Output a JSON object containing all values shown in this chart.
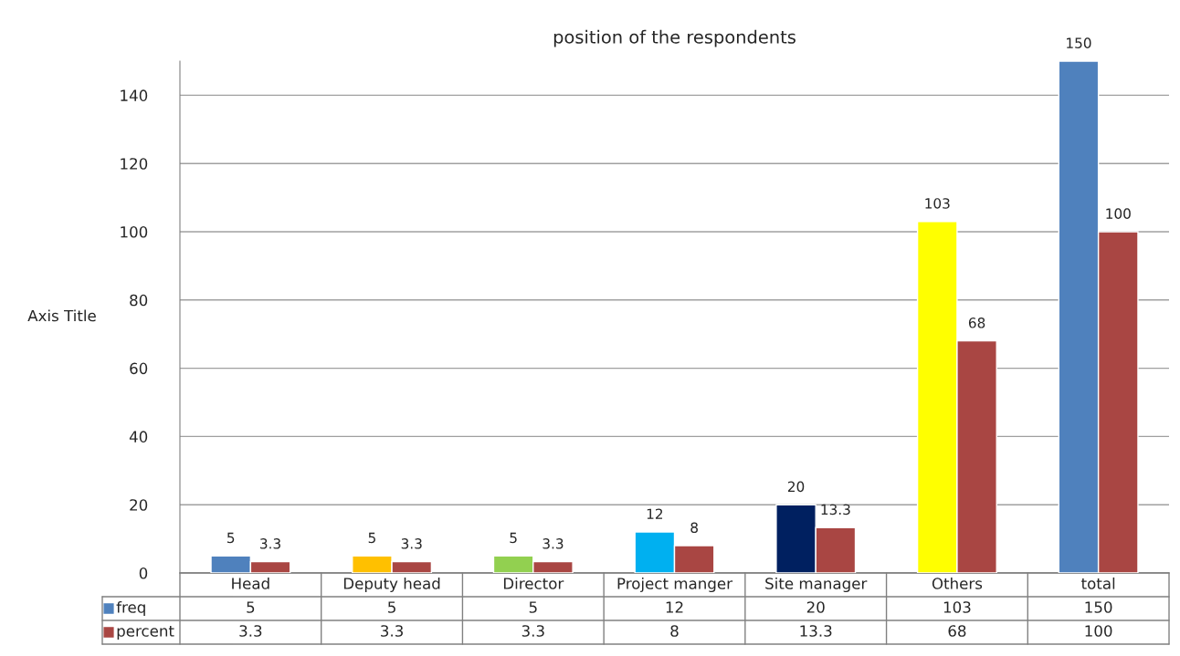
{
  "chart_data": {
    "type": "bar",
    "title": "position of the respondents",
    "ylabel": "Axis Title",
    "categories": [
      "Head",
      "Deputy head",
      "Director",
      "Project manger",
      "Site manager",
      "Others",
      "total"
    ],
    "series": [
      {
        "name": "freq",
        "color": "#4f81bd",
        "colors": [
          "#4f81bd",
          "#ffc000",
          "#92d050",
          "#00b0f0",
          "#002060",
          "#ffff00",
          "#4f81bd"
        ],
        "values": [
          5,
          5,
          5,
          12,
          20,
          103,
          150
        ]
      },
      {
        "name": "percent",
        "color": "#a94643",
        "values": [
          3.3,
          3.3,
          3.3,
          8,
          13.3,
          68,
          100
        ]
      }
    ],
    "annotations": [
      "5",
      "5",
      "5",
      "12",
      "20",
      "103",
      "150",
      "3.3",
      "3.3",
      "3.3",
      "8",
      "13.3",
      "68",
      "100"
    ],
    "ylim": [
      0,
      150
    ],
    "yticks": [
      0,
      20,
      40,
      60,
      80,
      100,
      120,
      140
    ],
    "grid": "y",
    "data_labels": true,
    "legend": "bottom"
  }
}
